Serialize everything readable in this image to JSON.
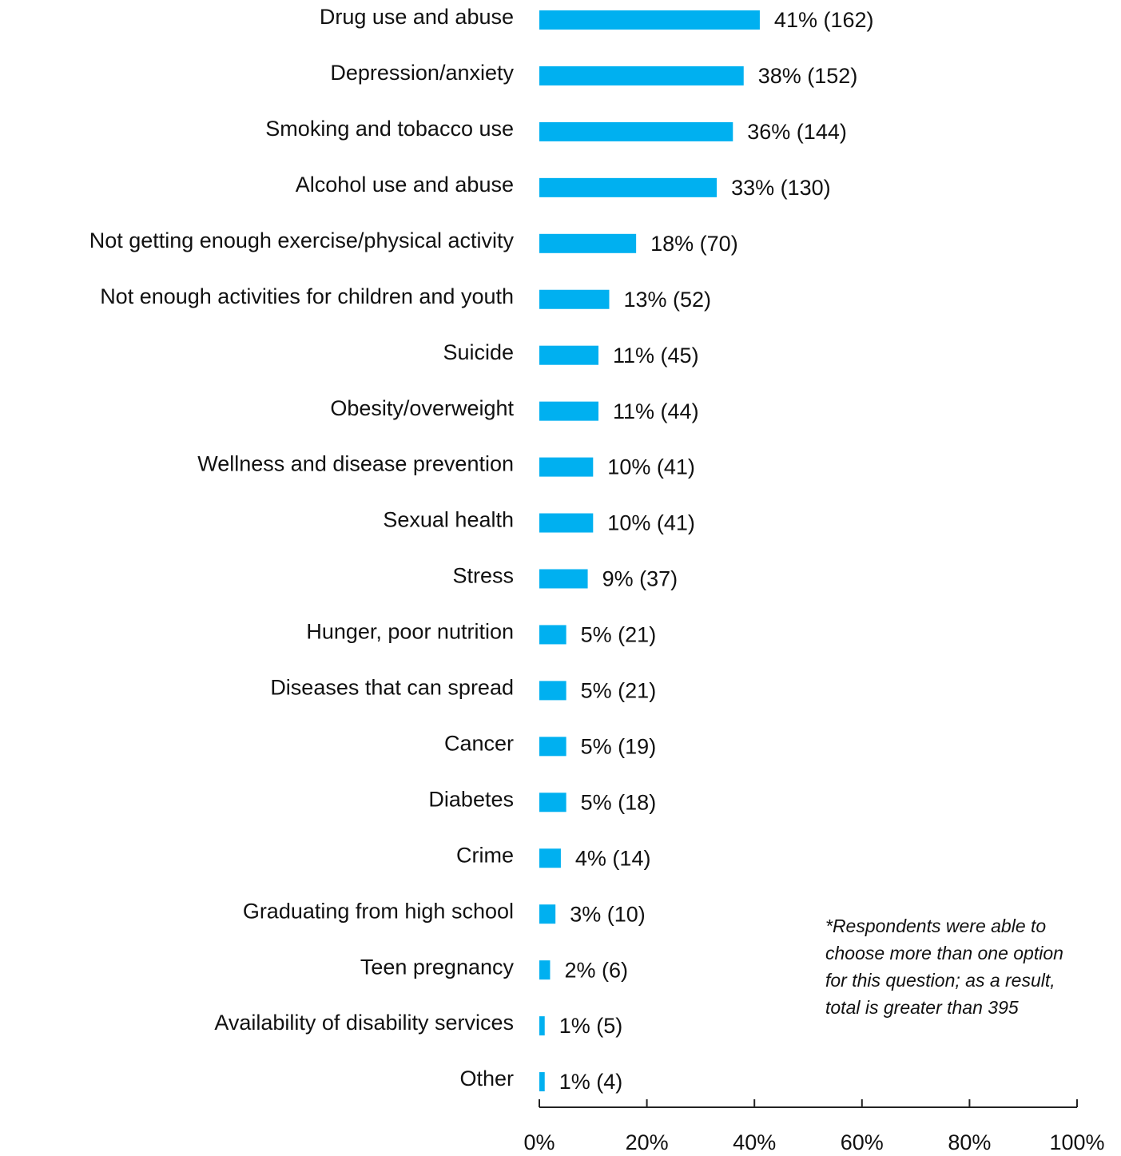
{
  "chart_data": {
    "type": "hbar",
    "categories": [
      "Drug use and abuse",
      "Depression/anxiety",
      "Smoking and tobacco use",
      "Alcohol use and abuse",
      "Not getting enough exercise/physical activity",
      "Not enough activities for children and youth",
      "Suicide",
      "Obesity/overweight",
      "Wellness and disease prevention",
      "Sexual health",
      "Stress",
      "Hunger, poor nutrition",
      "Diseases that can spread",
      "Cancer",
      "Diabetes",
      "Crime",
      "Graduating from high school",
      "Teen pregnancy",
      "Availability of disability services",
      "Other"
    ],
    "values": [
      41,
      38,
      36,
      33,
      18,
      13,
      11,
      11,
      10,
      10,
      9,
      5,
      5,
      5,
      5,
      4,
      3,
      2,
      1,
      1
    ],
    "value_labels": [
      "41% (162)",
      "38% (152)",
      "36% (144)",
      "33% (130)",
      "18% (70)",
      "13% (52)",
      "11% (45)",
      "11% (44)",
      "10% (41)",
      "10% (41)",
      "9% (37)",
      "5% (21)",
      "5% (21)",
      "5% (19)",
      "5% (18)",
      "4% (14)",
      "3% (10)",
      "2% (6)",
      "1% (5)",
      "1% (4)"
    ],
    "color": "#00b0f0",
    "xlim": [
      0,
      100
    ],
    "xticks": [
      {
        "value": 0,
        "label": "0%"
      },
      {
        "value": 20,
        "label": "20%"
      },
      {
        "value": 40,
        "label": "40%"
      },
      {
        "value": 60,
        "label": "60%"
      },
      {
        "value": 80,
        "label": "80%"
      },
      {
        "value": 100,
        "label": "100%"
      }
    ],
    "annotation": [
      "*Respondents were able to",
      "choose more than one option",
      "for this question; as a result,",
      "total is greater than 395"
    ]
  }
}
